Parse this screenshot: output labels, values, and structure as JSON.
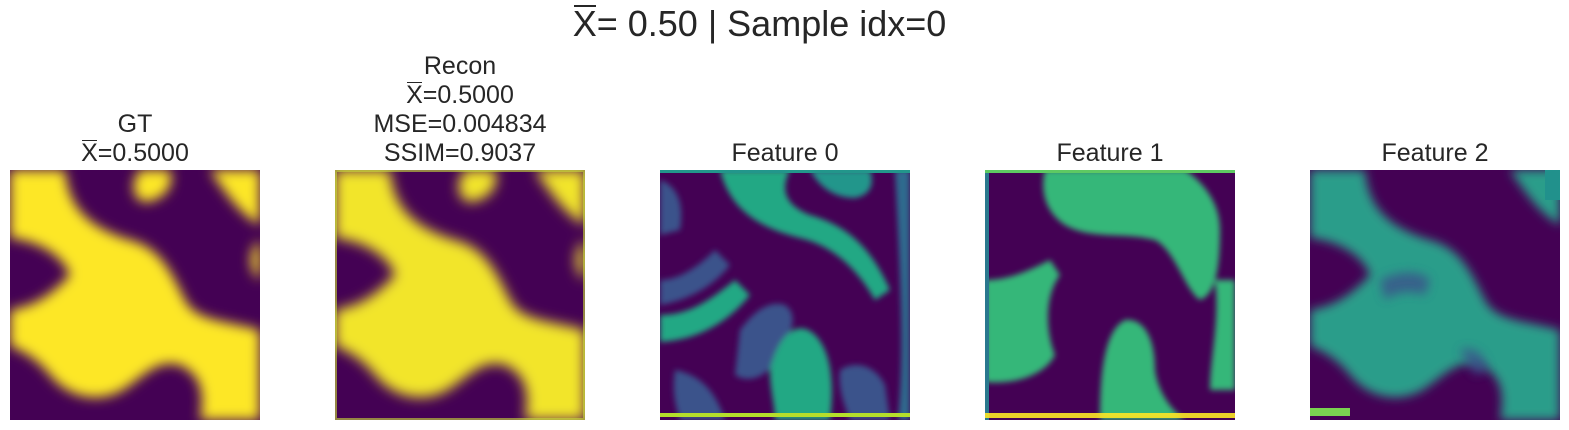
{
  "suptitle": {
    "symbol": "X",
    "text": "= 0.50 | Sample idx=0"
  },
  "panels": [
    {
      "lines": [
        "GT"
      ],
      "metric_value": "=0.5000",
      "colormap": "viridis"
    },
    {
      "lines_before": [
        "Recon"
      ],
      "metric_value": "=0.5000",
      "lines_after": [
        "MSE=0.004834",
        "SSIM=0.9037"
      ],
      "colormap": "viridis"
    },
    {
      "lines": [
        "Feature 0"
      ],
      "colormap": "viridis"
    },
    {
      "lines": [
        "Feature 1"
      ],
      "colormap": "viridis"
    },
    {
      "lines": [
        "Feature 2"
      ],
      "colormap": "viridis"
    }
  ],
  "colors": {
    "viridis_low": "#440154",
    "viridis_mid": "#21918c",
    "viridis_teal_green": "#2a9d8a",
    "viridis_green": "#35b779",
    "viridis_high": "#fde725"
  }
}
